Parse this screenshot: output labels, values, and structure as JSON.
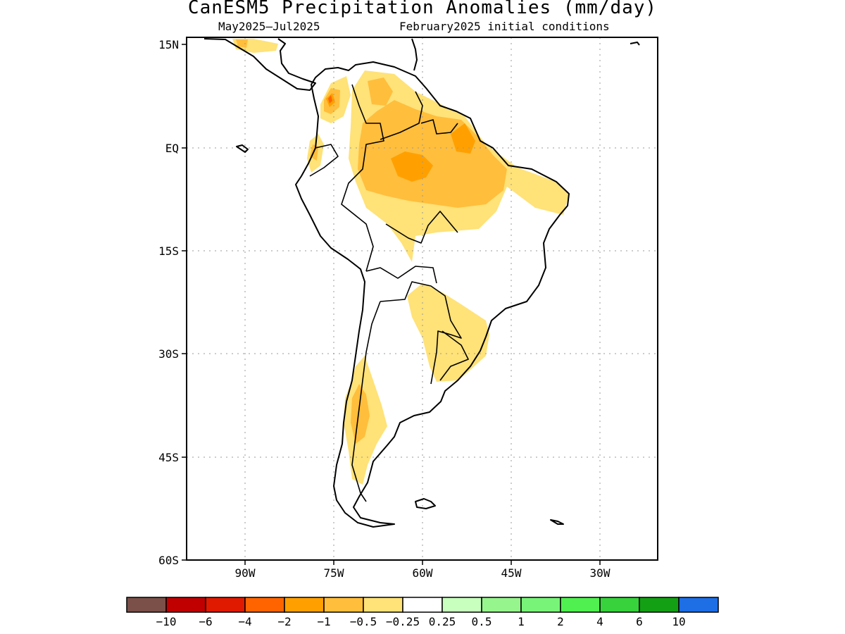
{
  "title": "CanESM5 Precipitation Anomalies (mm/day)",
  "subtitle_left": "May2025–Jul2025",
  "subtitle_right": "February2025 initial conditions",
  "lat_labels": [
    "15N",
    "EQ",
    "15S",
    "30S",
    "45S",
    "60S"
  ],
  "lon_labels": [
    "90W",
    "75W",
    "60W",
    "45W",
    "30W"
  ],
  "colorbar": {
    "colors": [
      "#7a5048",
      "#c00000",
      "#e01a00",
      "#ff6400",
      "#ffa000",
      "#ffbe3c",
      "#ffe278",
      "#ffffff",
      "#c8ffbe",
      "#96f58c",
      "#78f578",
      "#50f050",
      "#37d23c",
      "#14a014",
      "#1e6ee6"
    ],
    "tick_labels": [
      "−10",
      "−6",
      "−4",
      "−2",
      "−1",
      "−0.5",
      "−0.25",
      "0.25",
      "0.5",
      "1",
      "2",
      "4",
      "6",
      "10"
    ]
  },
  "legend_colors": {
    "light": "#ffe278",
    "medium": "#ffbe3c",
    "orange": "#ffa000",
    "dark_orange": "#ff6400"
  }
}
